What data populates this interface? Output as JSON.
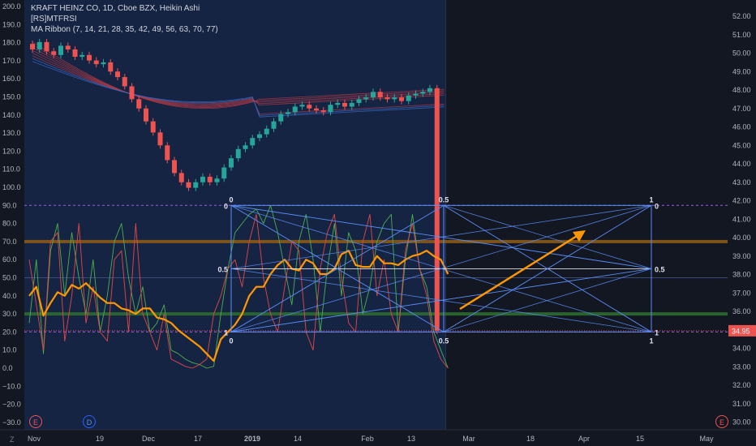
{
  "legend": {
    "title": "KRAFT HEINZ CO, 1D, Cboe BZX, Heikin Ashi",
    "indicator1": "[RS]MTFRSI",
    "indicator2": "MA Ribbon (7, 14, 21, 28, 35, 42, 49, 56, 63, 70, 77)"
  },
  "axes": {
    "left_ticks": [
      "200.0",
      "190.0",
      "180.0",
      "170.0",
      "160.0",
      "150.0",
      "140.0",
      "130.0",
      "120.0",
      "110.0",
      "100.0",
      "90.0",
      "80.0",
      "70.0",
      "60.0",
      "50.0",
      "40.0",
      "30.0",
      "20.0",
      "10.0",
      "0.0",
      "−10.0",
      "−20.0",
      "−30.0"
    ],
    "right_ticks": [
      "52.00",
      "51.00",
      "50.00",
      "49.00",
      "48.00",
      "47.00",
      "46.00",
      "45.00",
      "44.00",
      "43.00",
      "42.00",
      "41.00",
      "40.00",
      "39.00",
      "38.00",
      "37.00",
      "36.00",
      "35.00",
      "34.00",
      "33.00",
      "32.00",
      "31.00",
      "30.00"
    ],
    "x_ticks": [
      "Nov",
      "19",
      "Dec",
      "17",
      "2019",
      "14",
      "Feb",
      "13",
      "Mar",
      "18",
      "Apr",
      "15",
      "May"
    ],
    "price_label": "34.95"
  },
  "fib": {
    "top_labels": [
      "0",
      "0.5",
      "1"
    ],
    "bottom_labels": [
      "0",
      "0.5",
      "1"
    ],
    "left_labels": [
      "0",
      "0.5",
      "1"
    ],
    "right_labels": [
      "0",
      "0.5",
      "1"
    ]
  },
  "buttons": {
    "events_left": "E",
    "dividends": "D",
    "events_right": "E",
    "settings": "Z"
  },
  "colors": {
    "up": "#26a69a",
    "down": "#ef5350",
    "highlight": "#162443",
    "orange": "#ff9800",
    "fib": "#5b8ff9"
  },
  "chart_data": {
    "type": "candlestick",
    "title": "KRAFT HEINZ CO, 1D, Cboe BZX, Heikin Ashi",
    "last_price": 34.95,
    "price_range": [
      30,
      52.5
    ],
    "rsi_range": [
      -30,
      200
    ],
    "candles_close": [
      50.2,
      50.6,
      50.1,
      49.9,
      50.4,
      50.2,
      49.8,
      49.9,
      49.6,
      49.4,
      49.5,
      49.0,
      48.7,
      48.2,
      47.5,
      47.0,
      46.3,
      45.7,
      45.0,
      44.2,
      43.5,
      43.0,
      42.7,
      43.0,
      43.3,
      43.0,
      43.2,
      43.8,
      44.3,
      44.8,
      45.0,
      45.4,
      45.6,
      45.9,
      46.3,
      46.7,
      46.8,
      47.1,
      47.2,
      47.0,
      46.9,
      46.8,
      47.2,
      47.3,
      47.1,
      47.3,
      47.5,
      47.6,
      47.9,
      47.6,
      47.5,
      47.6,
      47.4,
      47.7,
      47.8,
      47.9,
      48.1,
      34.95
    ],
    "rsi_orange": [
      40,
      45,
      29,
      36,
      42,
      40,
      46,
      44,
      47,
      43,
      39,
      36,
      36,
      33,
      32,
      30,
      33,
      33,
      28,
      27,
      25,
      21,
      18,
      15,
      12,
      8,
      4,
      16,
      20,
      24,
      30,
      40,
      45,
      45,
      52,
      57,
      60,
      55,
      54,
      60,
      58,
      52,
      52,
      55,
      63,
      65,
      57,
      56,
      56,
      62,
      58,
      58,
      57,
      60,
      62,
      63,
      65,
      62,
      60,
      52
    ],
    "rsi_green": [
      25,
      60,
      8,
      65,
      80,
      40,
      75,
      50,
      30,
      60,
      20,
      40,
      70,
      80,
      50,
      30,
      45,
      20,
      25,
      35,
      10,
      8,
      5,
      3,
      2,
      0,
      1,
      30,
      55,
      75,
      80,
      85,
      88,
      80,
      90,
      75,
      55,
      35,
      70,
      85,
      60,
      20,
      55,
      80,
      40,
      75,
      65,
      30,
      45,
      70,
      80,
      85,
      20,
      60,
      85,
      55,
      45,
      20,
      10,
      0
    ],
    "rsi_red": [
      60,
      35,
      10,
      70,
      75,
      15,
      40,
      80,
      25,
      45,
      20,
      15,
      60,
      65,
      20,
      80,
      30,
      20,
      10,
      30,
      5,
      3,
      1,
      0,
      2,
      5,
      30,
      40,
      55,
      60,
      45,
      70,
      85,
      50,
      30,
      20,
      45,
      70,
      65,
      20,
      10,
      55,
      75,
      85,
      50,
      25,
      20,
      70,
      85,
      40,
      60,
      30,
      20,
      65,
      80,
      55,
      40,
      15,
      5,
      0
    ]
  }
}
